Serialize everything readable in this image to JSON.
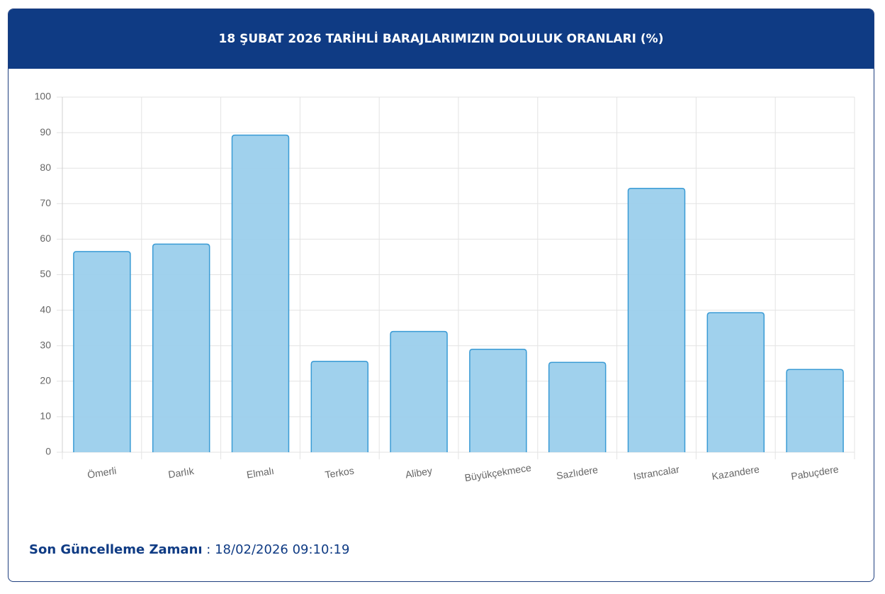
{
  "chart_data": {
    "type": "bar",
    "title": "18 ŞUBAT 2026 TARİHLİ BARAJLARIMIZIN DOLULUK ORANLARI (%)",
    "categories": [
      "Ömerli",
      "Darlık",
      "Elmalı",
      "Terkos",
      "Alibey",
      "Büyükçekmece",
      "Sazlıdere",
      "Istrancalar",
      "Kazandere",
      "Pabuçdere"
    ],
    "values": [
      56.5,
      58.6,
      89.3,
      25.6,
      34.0,
      29.0,
      25.3,
      74.3,
      39.3,
      23.3
    ],
    "color": "#9bcfec",
    "border_color": "#3a9bd5",
    "ylim": [
      0,
      100
    ],
    "yticks": [
      0,
      10,
      20,
      30,
      40,
      50,
      60,
      70,
      80,
      90,
      100
    ],
    "grid": true
  },
  "footer": {
    "label": "Son Güncelleme Zamanı",
    "separator": ":",
    "value": "18/02/2026 09:10:19"
  }
}
